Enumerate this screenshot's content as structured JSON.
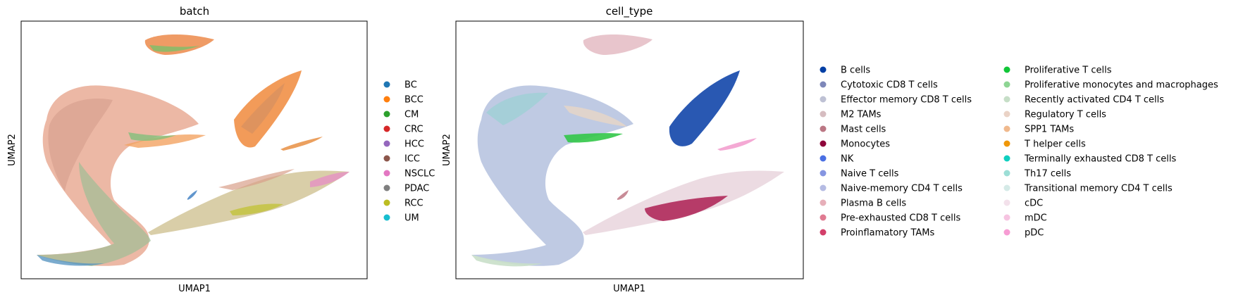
{
  "chart_data": [
    {
      "type": "scatter",
      "title": "batch",
      "xlabel": "UMAP1",
      "ylabel": "UMAP2",
      "grid": false,
      "axis_ticks": false,
      "legend_placement": "right",
      "legend": [
        {
          "label": "BC",
          "color": "#1f77b4"
        },
        {
          "label": "BCC",
          "color": "#ff7f0e"
        },
        {
          "label": "CM",
          "color": "#2ca02c"
        },
        {
          "label": "CRC",
          "color": "#d62728"
        },
        {
          "label": "HCC",
          "color": "#9467bd"
        },
        {
          "label": "ICC",
          "color": "#8c564b"
        },
        {
          "label": "NSCLC",
          "color": "#e377c2"
        },
        {
          "label": "PDAC",
          "color": "#7f7f7f"
        },
        {
          "label": "RCC",
          "color": "#bcbd22"
        },
        {
          "label": "UM",
          "color": "#17becf"
        }
      ]
    },
    {
      "type": "scatter",
      "title": "cell_type",
      "xlabel": "UMAP1",
      "ylabel": "UMAP2",
      "grid": false,
      "axis_ticks": false,
      "legend_placement": "right",
      "legend": [
        {
          "label": "B cells",
          "color": "#023fa5"
        },
        {
          "label": "Cytotoxic CD8 T cells",
          "color": "#7d87b9"
        },
        {
          "label": "Effector memory CD8 T cells",
          "color": "#bec1d4"
        },
        {
          "label": "M2 TAMs",
          "color": "#d6bcc0"
        },
        {
          "label": "Mast cells",
          "color": "#bb7784"
        },
        {
          "label": "Monocytes",
          "color": "#8e063b"
        },
        {
          "label": "NK",
          "color": "#4a6fe3"
        },
        {
          "label": "Naive T cells",
          "color": "#8595e1"
        },
        {
          "label": "Naive-memory CD4 T cells",
          "color": "#b5bbe3"
        },
        {
          "label": "Plasma B cells",
          "color": "#e6afb9"
        },
        {
          "label": "Pre-exhausted CD8 T cells",
          "color": "#e07b91"
        },
        {
          "label": "Proinflamatory TAMs",
          "color": "#d33f6a"
        },
        {
          "label": "Proliferative T cells",
          "color": "#11c638"
        },
        {
          "label": "Proliferative monocytes and macrophages",
          "color": "#8dd593"
        },
        {
          "label": "Recently activated CD4 T cells",
          "color": "#c6dec7"
        },
        {
          "label": "Regulatory T cells",
          "color": "#ead3c6"
        },
        {
          "label": "SPP1 TAMs",
          "color": "#f0b98d"
        },
        {
          "label": "T helper cells",
          "color": "#ef9708"
        },
        {
          "label": "Terminally exhausted CD8 T cells",
          "color": "#0fcfc0"
        },
        {
          "label": "Th17 cells",
          "color": "#9cded6"
        },
        {
          "label": "Transitional memory CD4 T cells",
          "color": "#d5eae7"
        },
        {
          "label": "cDC",
          "color": "#f3e1eb"
        },
        {
          "label": "mDC",
          "color": "#f6c4e1"
        },
        {
          "label": "pDC",
          "color": "#f79cd4"
        }
      ]
    }
  ]
}
